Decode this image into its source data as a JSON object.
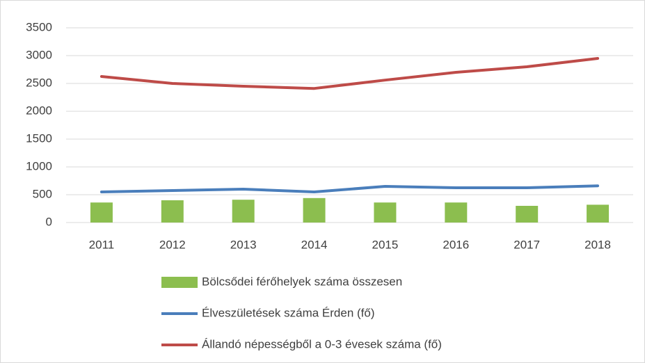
{
  "chart_data": {
    "type": "bar",
    "categories": [
      "2011",
      "2012",
      "2013",
      "2014",
      "2015",
      "2016",
      "2017",
      "2018"
    ],
    "series": [
      {
        "name": "Bölcsődei férőhelyek száma összesen",
        "type": "bar",
        "color": "#8cbe4f",
        "values": [
          360,
          400,
          410,
          440,
          360,
          360,
          300,
          320
        ]
      },
      {
        "name": "Élveszületések száma Érden (fő)",
        "type": "line",
        "color": "#4a7ebb",
        "values": [
          550,
          575,
          600,
          550,
          650,
          625,
          625,
          660
        ]
      },
      {
        "name": "Állandó népességből a 0-3 évesek száma (fő)",
        "type": "line",
        "color": "#be4b48",
        "values": [
          2625,
          2500,
          2450,
          2410,
          2560,
          2700,
          2800,
          2950
        ]
      }
    ],
    "ylim": [
      0,
      3500
    ],
    "yticks": [
      0,
      500,
      1000,
      1500,
      2000,
      2500,
      3000,
      3500
    ],
    "grid": true,
    "legend": "bottom"
  }
}
